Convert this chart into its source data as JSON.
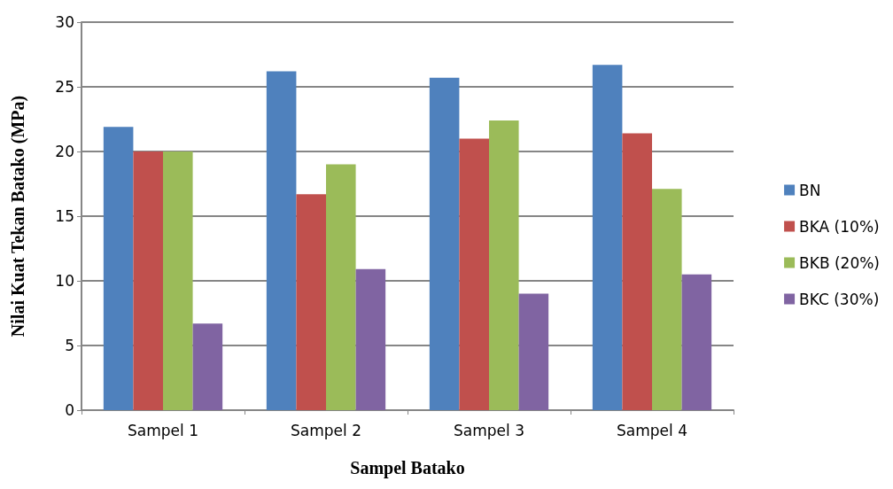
{
  "chart_data": {
    "type": "bar",
    "xlabel": "Sampel Batako",
    "ylabel": "Nilai Kuat Tekan Batako (MPa)",
    "categories": [
      "Sampel 1",
      "Sampel 2",
      "Sampel 3",
      "Sampel 4"
    ],
    "series": [
      {
        "name": "BN",
        "color": "#4f81bd",
        "values": [
          21.9,
          26.2,
          25.7,
          26.7
        ]
      },
      {
        "name": "BKA (10%)",
        "color": "#c0504d",
        "values": [
          20.0,
          16.7,
          21.0,
          21.4
        ]
      },
      {
        "name": "BKB (20%)",
        "color": "#9bbb59",
        "values": [
          20.0,
          19.0,
          22.4,
          17.1
        ]
      },
      {
        "name": "BKC (30%)",
        "color": "#8064a2",
        "values": [
          6.7,
          10.9,
          9.0,
          10.5
        ]
      }
    ],
    "ylim": [
      0,
      30
    ],
    "yticks": [
      0,
      5,
      10,
      15,
      20,
      25,
      30
    ],
    "grid": "y",
    "legend": "right"
  }
}
